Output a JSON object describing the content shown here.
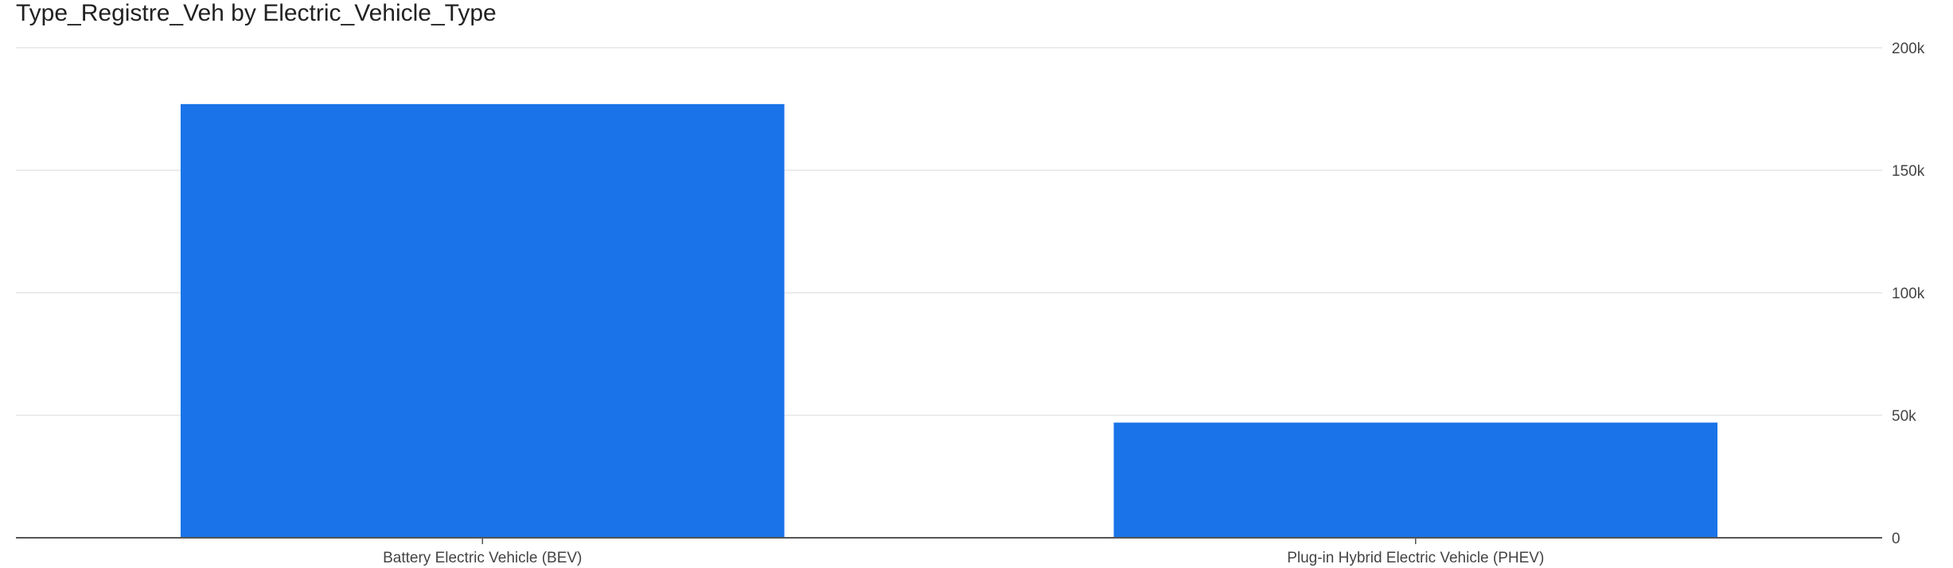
{
  "chart_data": {
    "type": "bar",
    "title": "Type_Registre_Veh by Electric_Vehicle_Type",
    "categories": [
      "Battery Electric Vehicle (BEV)",
      "Plug-in Hybrid Electric Vehicle (PHEV)"
    ],
    "values": [
      177000,
      47000
    ],
    "y_ticks": [
      {
        "value": 0,
        "label": "0"
      },
      {
        "value": 50000,
        "label": "50k"
      },
      {
        "value": 100000,
        "label": "100k"
      },
      {
        "value": 150000,
        "label": "150k"
      },
      {
        "value": 200000,
        "label": "200k"
      }
    ],
    "ylim": [
      0,
      200000
    ],
    "xlabel": "",
    "ylabel": "",
    "y_axis_side": "right",
    "grid": true,
    "legend": false,
    "bar_color": "#1a73e8",
    "grid_color": "#e6e6e6",
    "axis_color": "#555555"
  }
}
